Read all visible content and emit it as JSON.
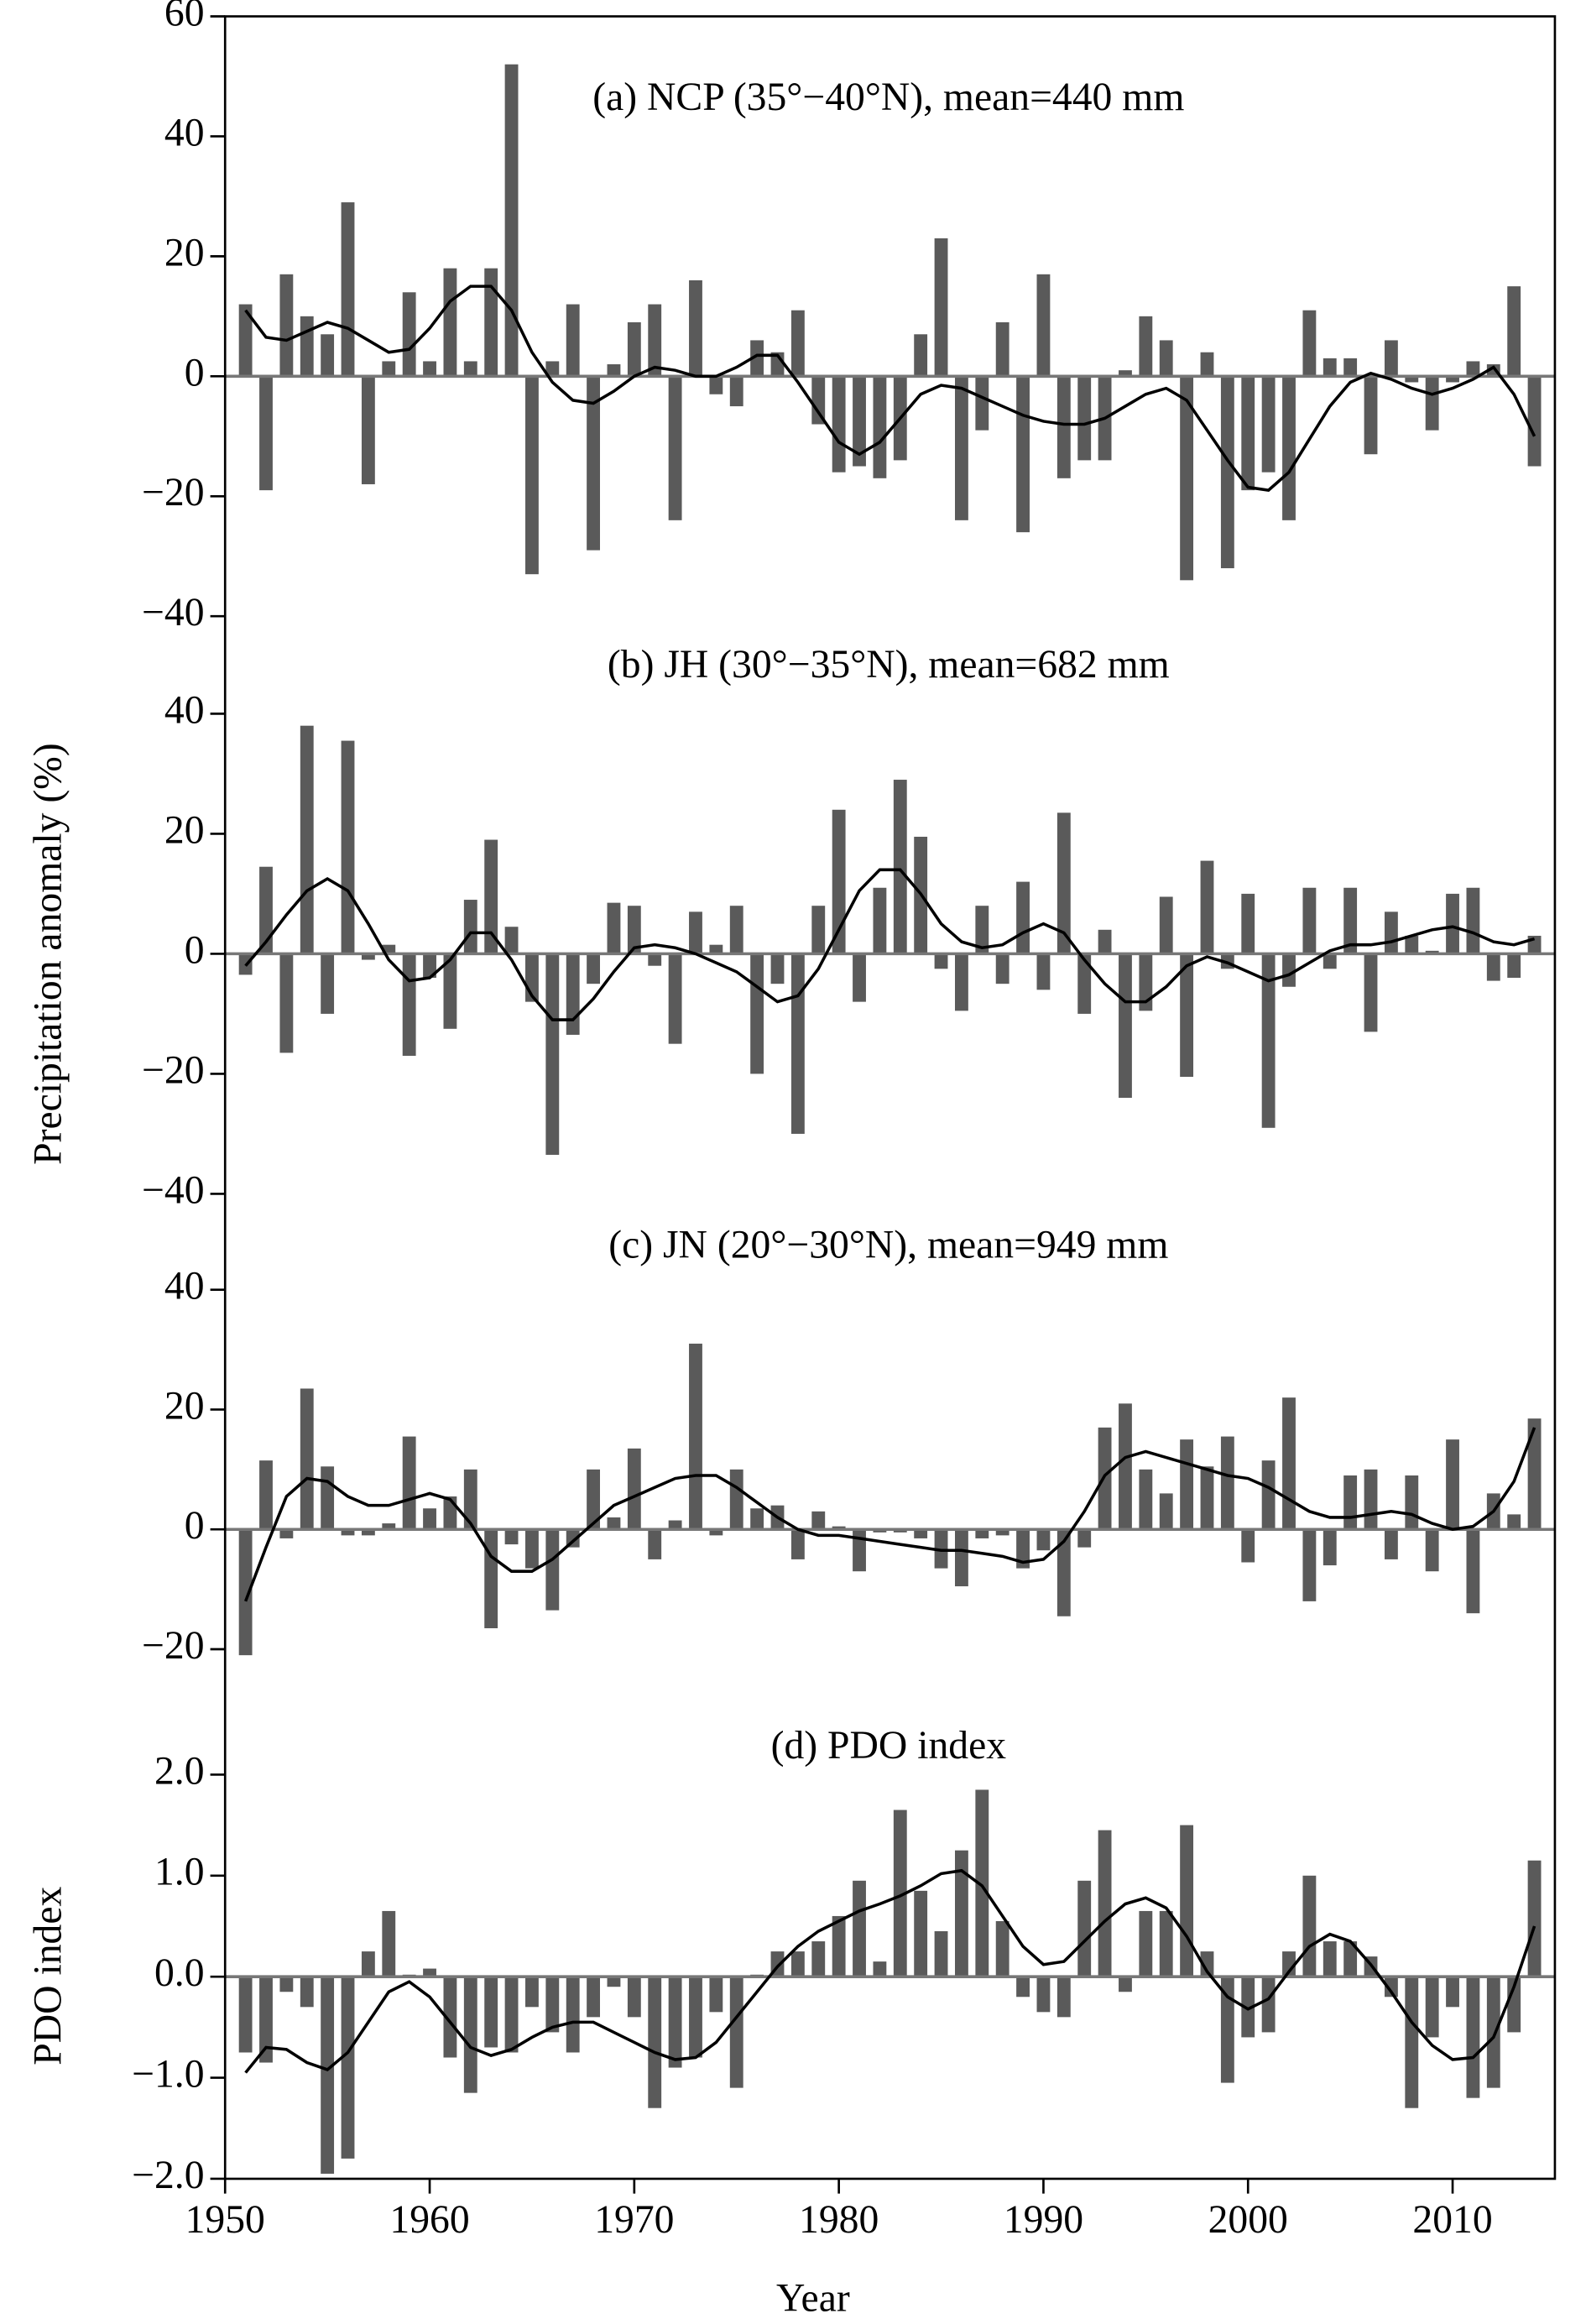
{
  "shared": {
    "xlabel": "Year",
    "xlim": [
      1950,
      2015
    ],
    "xticks": [
      1950,
      1960,
      1970,
      1980,
      1990,
      2000,
      2010
    ],
    "x": [
      1951,
      1952,
      1953,
      1954,
      1955,
      1956,
      1957,
      1958,
      1959,
      1960,
      1961,
      1962,
      1963,
      1964,
      1965,
      1966,
      1967,
      1968,
      1969,
      1970,
      1971,
      1972,
      1973,
      1974,
      1975,
      1976,
      1977,
      1978,
      1979,
      1980,
      1981,
      1982,
      1983,
      1984,
      1985,
      1986,
      1987,
      1988,
      1989,
      1990,
      1991,
      1992,
      1993,
      1994,
      1995,
      1996,
      1997,
      1998,
      1999,
      2000,
      2001,
      2002,
      2003,
      2004,
      2005,
      2006,
      2007,
      2008,
      2009,
      2010,
      2011,
      2012,
      2013,
      2014
    ]
  },
  "chart_data": [
    {
      "type": "bar",
      "title": "(a) NCP (35°−40°N), mean=440 mm",
      "color": "#5a5a5a",
      "line_color": "#000000",
      "ylim": [
        -40,
        60
      ],
      "yticks": [
        {
          "value": -40,
          "label": "−40"
        },
        {
          "value": -20,
          "label": "−20"
        },
        0,
        20,
        40,
        60
      ],
      "values": [
        12,
        -19,
        17,
        10,
        7,
        29,
        -18,
        2.5,
        14,
        2.5,
        18,
        2.5,
        18,
        52,
        -33,
        2.5,
        12,
        -29,
        2,
        9,
        12,
        -24,
        16,
        -3,
        -5,
        6,
        4,
        11,
        -8,
        -16,
        -15,
        -17,
        -14,
        7,
        23,
        -24,
        -9,
        9,
        -26,
        17,
        -17,
        -14,
        -14,
        1,
        10,
        6,
        -34,
        4,
        -32,
        -19,
        -16,
        -24,
        11,
        3,
        3,
        -13,
        6,
        -1,
        -9,
        -1,
        2.5,
        2,
        15,
        -15
      ],
      "line_values": [
        11,
        6.5,
        6,
        7.5,
        9,
        8,
        6,
        4,
        4.5,
        8,
        12.5,
        15,
        15,
        11,
        4,
        -1,
        -4,
        -4.5,
        -2.5,
        0,
        1.5,
        1,
        0,
        0,
        1.5,
        3.5,
        3.5,
        -1,
        -6,
        -11,
        -13,
        -11,
        -7,
        -3,
        -1.5,
        -2,
        -3.5,
        -5,
        -6.5,
        -7.5,
        -8,
        -8,
        -7,
        -5,
        -3,
        -2,
        -4,
        -9,
        -14,
        -18.5,
        -19,
        -16,
        -10.5,
        -5,
        -1,
        0.5,
        -0.5,
        -2,
        -3,
        -2,
        -0.5,
        1.5,
        -3,
        -10
      ]
    },
    {
      "type": "bar",
      "title": "(b) JH (30°−35°N), mean=682 mm",
      "ylabel": "Precipitation anomaly (%)",
      "color": "#5a5a5a",
      "line_color": "#000000",
      "ylim": [
        -40,
        56
      ],
      "yticks": [
        {
          "value": -40,
          "label": "−40"
        },
        {
          "value": -20,
          "label": "−20"
        },
        0,
        20,
        40
      ],
      "values": [
        -3.5,
        14.5,
        -16.5,
        38,
        -10,
        35.5,
        -1,
        1.5,
        -17,
        -4,
        -12.5,
        9,
        19,
        4.5,
        -8,
        -33.5,
        -13.5,
        -5,
        8.5,
        8,
        -2,
        -15,
        7,
        1.5,
        8,
        -20,
        -5,
        -30,
        8,
        24,
        -8,
        11,
        29,
        19.5,
        -2.5,
        -9.5,
        8,
        -5,
        12,
        -6,
        23.5,
        -10,
        4,
        -24,
        -9.5,
        9.5,
        -20.5,
        15.5,
        -2.5,
        10,
        -29,
        -5.5,
        11,
        -2.5,
        11,
        -13,
        7,
        3,
        0.5,
        10,
        11,
        -4.5,
        -4,
        3
      ],
      "line_values": [
        -2,
        2,
        6.5,
        10.5,
        12.5,
        10.5,
        5,
        -1,
        -4.5,
        -4,
        -1,
        3.5,
        3.5,
        -1,
        -7,
        -11,
        -11,
        -7.5,
        -3,
        1,
        1.5,
        1,
        0,
        -1.5,
        -3,
        -5.5,
        -8,
        -7,
        -2.5,
        4,
        10.5,
        14,
        14,
        10,
        5,
        2,
        1,
        1.5,
        3.5,
        5,
        3.5,
        -1,
        -5,
        -8,
        -8,
        -5.5,
        -2,
        -0.5,
        -1.5,
        -3,
        -4.5,
        -3.5,
        -1.5,
        0.5,
        1.5,
        1.5,
        2,
        3,
        4,
        4.5,
        3.5,
        2,
        1.5,
        2.5
      ]
    },
    {
      "type": "bar",
      "title": "(c) JN (20°−30°N), mean=949 mm",
      "color": "#5a5a5a",
      "line_color": "#000000",
      "ylim": [
        -32,
        56
      ],
      "yticks": [
        {
          "value": -20,
          "label": "−20"
        },
        0,
        20,
        40
      ],
      "values": [
        -21,
        11.5,
        -1.5,
        23.5,
        10.5,
        -1,
        -1,
        1,
        15.5,
        3.5,
        5.5,
        10,
        -16.5,
        -2.5,
        -6.5,
        -13.5,
        -3,
        10,
        2,
        13.5,
        -5,
        1.5,
        31,
        -1,
        10,
        3.5,
        4,
        -5,
        3,
        0.5,
        -7,
        -0.5,
        -0.5,
        -1.5,
        -6.5,
        -9.5,
        -1.5,
        -1,
        -6.5,
        -3.5,
        -14.5,
        -3,
        17,
        21,
        10,
        6,
        15,
        10.5,
        15.5,
        -5.5,
        11.5,
        22,
        -12,
        -6,
        9,
        10,
        -5,
        9,
        -7,
        15,
        -14,
        6,
        2.5,
        18.5
      ],
      "line_values": [
        -12,
        -3,
        5.5,
        8.5,
        8,
        5.5,
        4,
        4,
        5,
        6,
        5,
        1,
        -4.5,
        -7,
        -7,
        -5,
        -2,
        1,
        4,
        5.5,
        7,
        8.5,
        9,
        9,
        7,
        4.5,
        2,
        0,
        -1,
        -1,
        -1.5,
        -2,
        -2.5,
        -3,
        -3.5,
        -3.5,
        -4,
        -4.5,
        -5.5,
        -5,
        -2,
        3,
        9,
        12,
        13,
        12,
        11,
        10,
        9,
        8.5,
        7,
        5,
        3,
        2,
        2,
        2.5,
        3,
        2.5,
        1,
        0,
        0.5,
        3,
        8,
        17
      ]
    },
    {
      "type": "bar",
      "title": "(d) PDO index",
      "ylabel": "PDO index",
      "color": "#5a5a5a",
      "line_color": "#000000",
      "ylim": [
        -2,
        2.5
      ],
      "yticks": [
        {
          "value": -2,
          "label": "−2.0"
        },
        {
          "value": -1,
          "label": "−1.0"
        },
        {
          "value": 0,
          "label": "0.0"
        },
        {
          "value": 1,
          "label": "1.0"
        },
        {
          "value": 2,
          "label": "2.0"
        }
      ],
      "values": [
        -0.75,
        -0.85,
        -0.15,
        -0.3,
        -1.95,
        -1.8,
        0.25,
        0.65,
        0.02,
        0.08,
        -0.8,
        -1.15,
        -0.7,
        -0.75,
        -0.3,
        -0.55,
        -0.75,
        -0.4,
        -0.1,
        -0.4,
        -1.3,
        -0.9,
        -0.8,
        -0.35,
        -1.1,
        0.02,
        0.25,
        0.25,
        0.35,
        0.6,
        0.95,
        0.15,
        1.65,
        0.85,
        0.45,
        1.25,
        1.85,
        0.55,
        -0.2,
        -0.35,
        -0.4,
        0.95,
        1.45,
        -0.15,
        0.65,
        0.65,
        1.5,
        0.25,
        -1.05,
        -0.6,
        -0.55,
        0.25,
        1.0,
        0.35,
        0.35,
        0.2,
        -0.2,
        -1.3,
        -0.6,
        -0.3,
        -1.2,
        -1.1,
        -0.55,
        1.15
      ],
      "line_values": [
        -0.95,
        -0.7,
        -0.72,
        -0.85,
        -0.92,
        -0.75,
        -0.45,
        -0.15,
        -0.05,
        -0.2,
        -0.45,
        -0.7,
        -0.78,
        -0.72,
        -0.6,
        -0.5,
        -0.45,
        -0.45,
        -0.55,
        -0.65,
        -0.75,
        -0.82,
        -0.8,
        -0.65,
        -0.4,
        -0.15,
        0.1,
        0.3,
        0.45,
        0.55,
        0.65,
        0.72,
        0.8,
        0.9,
        1.02,
        1.05,
        0.9,
        0.6,
        0.3,
        0.12,
        0.15,
        0.35,
        0.55,
        0.72,
        0.78,
        0.68,
        0.4,
        0.05,
        -0.2,
        -0.32,
        -0.22,
        0.05,
        0.3,
        0.42,
        0.35,
        0.12,
        -0.15,
        -0.45,
        -0.68,
        -0.82,
        -0.8,
        -0.6,
        -0.1,
        0.5
      ]
    }
  ]
}
